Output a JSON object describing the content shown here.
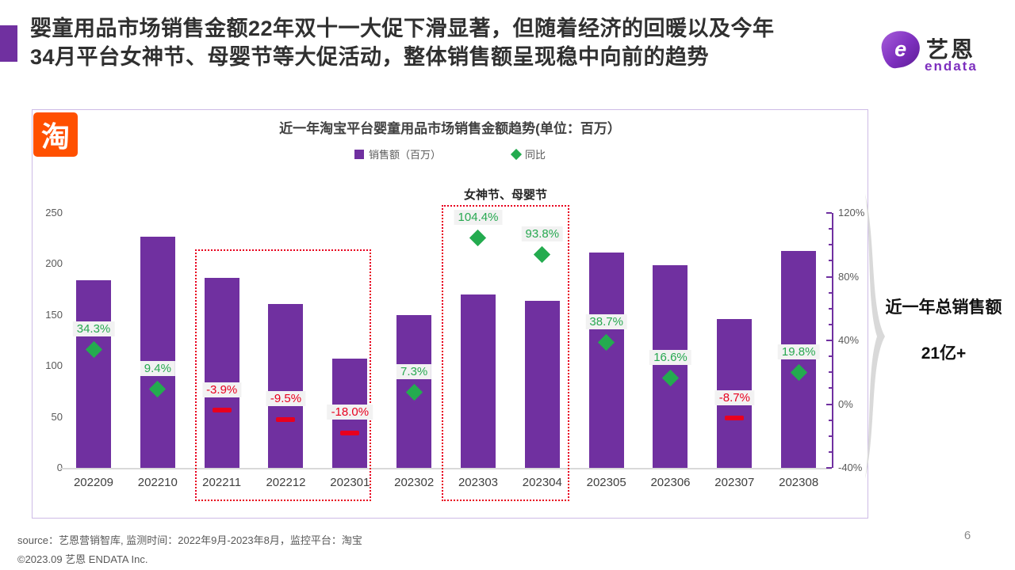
{
  "header": {
    "title_line1": "婴童用品市场销售金额22年双十一大促下滑显著，但随着经济的回暖以及今年",
    "title_line2": "34月平台女神节、母婴节等大促活动，整体销售额呈现稳中向前的趋势"
  },
  "logo": {
    "mark_letter": "e",
    "brand_cn": "艺恩",
    "brand_en": "endata"
  },
  "chart_panel": {
    "taobao_badge": "淘",
    "title": "近一年淘宝平台婴童用品市场销售金额趋势(单位：百万）",
    "legend": [
      {
        "label": "销售额（百万）",
        "marker": "square",
        "color": "#7030A0"
      },
      {
        "label": "同比",
        "marker": "diamond",
        "color": "#24AB4F"
      }
    ],
    "annotation": "女神节、母婴节",
    "side_note": {
      "line1": "近一年总销售额",
      "line2": "21亿+"
    }
  },
  "chart_data": {
    "type": "bar",
    "title": "近一年淘宝平台婴童用品市场销售金额趋势(单位：百万）",
    "categories": [
      "202209",
      "202210",
      "202211",
      "202212",
      "202301",
      "202302",
      "202303",
      "202304",
      "202305",
      "202306",
      "202307",
      "202308"
    ],
    "series": [
      {
        "name": "销售额（百万）",
        "type": "bar",
        "color": "#7030A0",
        "values": [
          184,
          227,
          186,
          161,
          107,
          150,
          170,
          164,
          211,
          199,
          146,
          213
        ]
      },
      {
        "name": "同比",
        "type": "scatter",
        "unit": "%",
        "marker": "diamond",
        "positive_color": "#24AB4F",
        "negative_color": "#E8001E",
        "values": [
          34.3,
          9.4,
          -3.9,
          -9.5,
          -18.0,
          7.3,
          104.4,
          93.8,
          38.7,
          16.6,
          -8.7,
          19.8
        ]
      }
    ],
    "left_axis": {
      "min": 0,
      "max": 250,
      "ticks": [
        0,
        50,
        100,
        150,
        200,
        250
      ]
    },
    "right_axis": {
      "min": -40,
      "max": 120,
      "minor_step": 10,
      "major_step": 40,
      "major_tick_labels": [
        "-40%",
        "0%",
        "40%",
        "80%",
        "120%"
      ]
    },
    "grid": "baseline-only",
    "legend_position": "top",
    "highlight_boxes": [
      {
        "from": "202211",
        "to": "202301",
        "label": ""
      },
      {
        "from": "202303",
        "to": "202304",
        "label": "女神节、母婴节"
      }
    ]
  },
  "footer": {
    "source": "source：艺恩营销智库, 监测时间：2022年9月-2023年8月，监控平台：淘宝",
    "copyright": "©2023.09  艺恩 ENDATA Inc.",
    "page_number": "6"
  }
}
